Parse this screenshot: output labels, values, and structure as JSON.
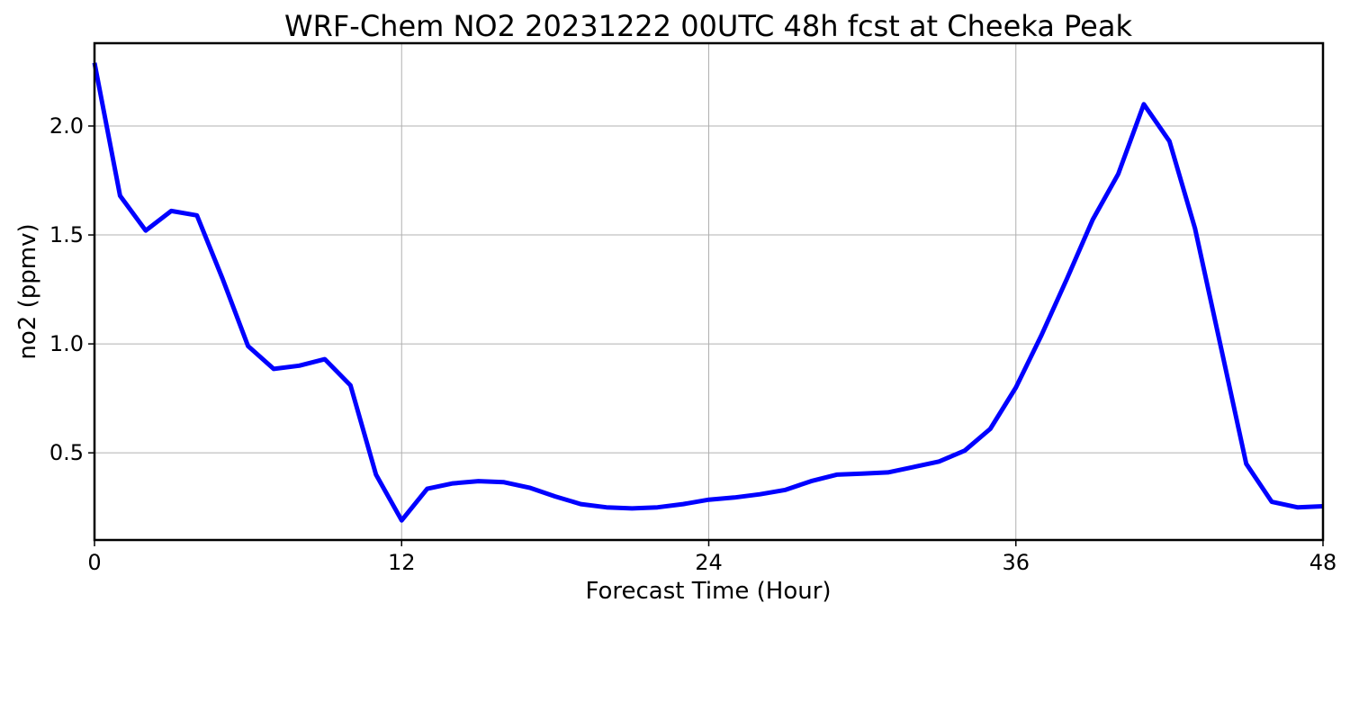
{
  "chart_data": {
    "type": "line",
    "title": "WRF-Chem NO2  20231222 00UTC 48h fcst at Cheeka Peak",
    "xlabel": "Forecast Time (Hour)",
    "ylabel": "no2  (ppmv)",
    "xlim": [
      0,
      48
    ],
    "ylim": [
      0.1,
      2.38
    ],
    "xticks": [
      0,
      12,
      24,
      36,
      48
    ],
    "xtick_labels": [
      "0",
      "12",
      "24",
      "36",
      "48"
    ],
    "yticks": [
      0.5,
      1.0,
      1.5,
      2.0
    ],
    "ytick_labels": [
      "0.5",
      "1.0",
      "1.5",
      "2.0"
    ],
    "grid": true,
    "series": [
      {
        "color": "#0000ff",
        "x": [
          0,
          1,
          2,
          3,
          4,
          5,
          6,
          7,
          8,
          9,
          10,
          11,
          12,
          13,
          14,
          15,
          16,
          17,
          18,
          19,
          20,
          21,
          22,
          23,
          24,
          25,
          26,
          27,
          28,
          29,
          30,
          31,
          32,
          33,
          34,
          35,
          36,
          37,
          38,
          39,
          40,
          41,
          42,
          43,
          44,
          45,
          46,
          47,
          48
        ],
        "values": [
          2.29,
          1.68,
          1.52,
          1.61,
          1.59,
          1.3,
          0.99,
          0.885,
          0.9,
          0.93,
          0.81,
          0.4,
          0.19,
          0.335,
          0.36,
          0.37,
          0.365,
          0.34,
          0.3,
          0.265,
          0.25,
          0.245,
          0.25,
          0.265,
          0.285,
          0.295,
          0.31,
          0.33,
          0.37,
          0.4,
          0.405,
          0.41,
          0.435,
          0.46,
          0.51,
          0.61,
          0.8,
          1.04,
          1.3,
          1.57,
          1.78,
          2.1,
          1.93,
          1.53,
          0.99,
          0.45,
          0.275,
          0.25,
          0.255
        ]
      }
    ]
  }
}
